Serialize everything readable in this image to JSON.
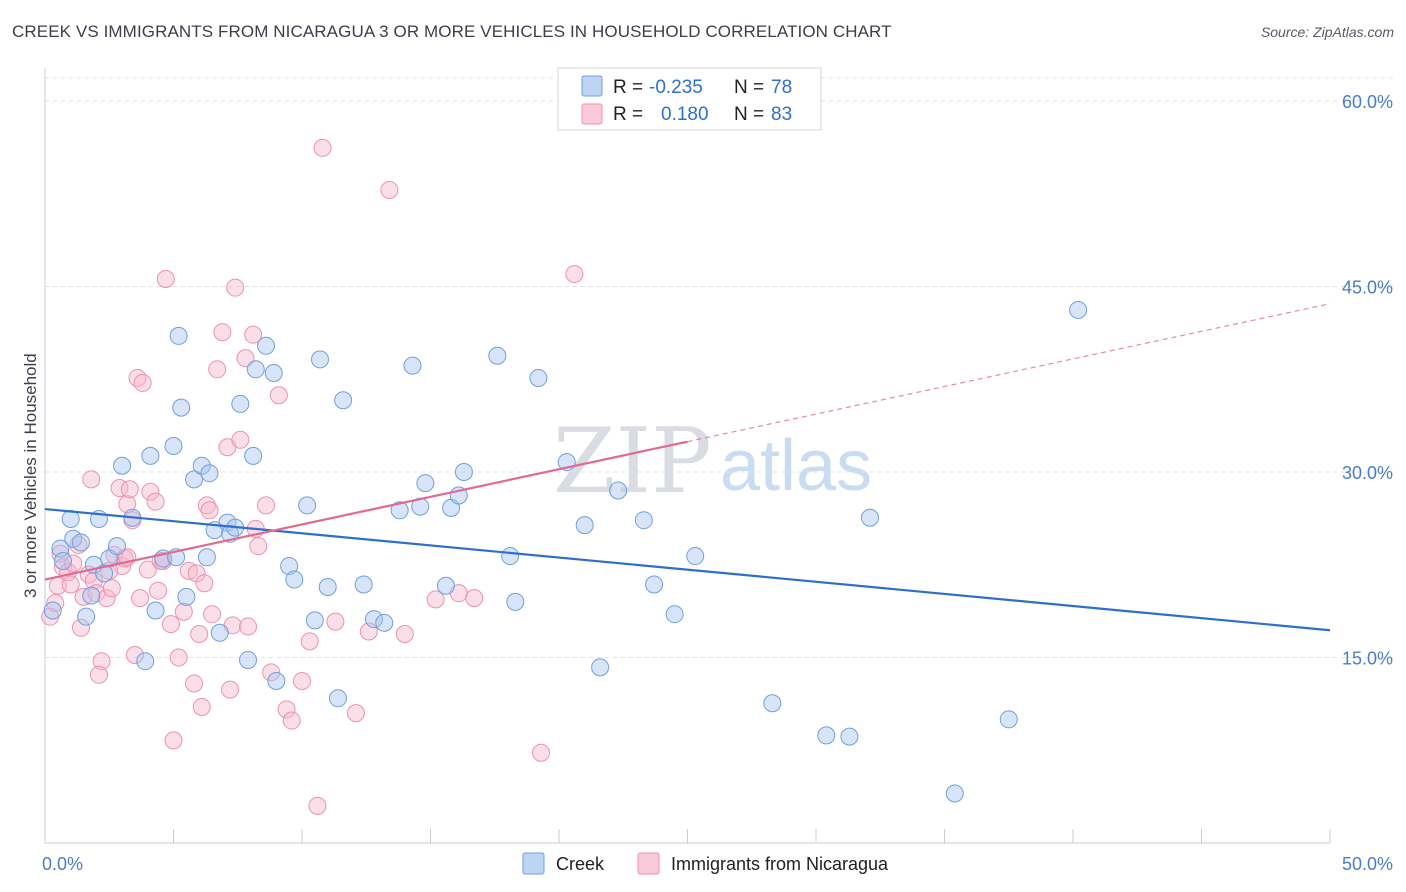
{
  "title": "CREEK VS IMMIGRANTS FROM NICARAGUA 3 OR MORE VEHICLES IN HOUSEHOLD CORRELATION CHART",
  "source": "Source: ZipAtlas.com",
  "watermark": {
    "zip": "ZIP",
    "atlas": "atlas"
  },
  "legend": {
    "r_label": "R =",
    "n_label": "N =",
    "creek": {
      "r": "-0.235",
      "n": "78"
    },
    "nicaragua": {
      "r": "0.180",
      "n": "83"
    }
  },
  "bottom_legend": {
    "creek": "Creek",
    "nicaragua": "Immigrants from Nicaragua"
  },
  "colors": {
    "creek_fill": "#a8c6ef",
    "creek_stroke": "#6f9fe0",
    "creek_line": "#2f6fcc",
    "nic_fill": "#f7b8cb",
    "nic_stroke": "#ef91ae",
    "nic_line": "#e26a92",
    "grid": "#dfe3e8",
    "axis_text": "#4a7cc9"
  },
  "chart_data": {
    "type": "scatter",
    "title": "CREEK VS IMMIGRANTS FROM NICARAGUA 3 OR MORE VEHICLES IN HOUSEHOLD CORRELATION CHART",
    "xlabel": "",
    "ylabel": "3 or more Vehicles in Household",
    "xlim": [
      0,
      50
    ],
    "ylim": [
      0,
      62.5
    ],
    "x_tick_labels": [
      "0.0%",
      "50.0%"
    ],
    "y_ticks": [
      15,
      30,
      45,
      60
    ],
    "y_tick_labels": [
      "15.0%",
      "30.0%",
      "45.0%",
      "60.0%"
    ],
    "legend_position": "top-center",
    "series": [
      {
        "name": "Creek",
        "r": -0.235,
        "n": 78,
        "trend": {
          "x": [
            0,
            50
          ],
          "y": [
            27.0,
            17.2
          ],
          "dashed_to": null
        },
        "points": [
          [
            0.3,
            18.8
          ],
          [
            0.6,
            23.8
          ],
          [
            0.7,
            22.8
          ],
          [
            1.0,
            26.2
          ],
          [
            1.1,
            24.6
          ],
          [
            1.4,
            24.3
          ],
          [
            1.6,
            18.3
          ],
          [
            1.9,
            22.5
          ],
          [
            2.1,
            26.2
          ],
          [
            2.3,
            21.8
          ],
          [
            2.5,
            23.0
          ],
          [
            2.8,
            24.0
          ],
          [
            3.0,
            30.5
          ],
          [
            3.4,
            26.3
          ],
          [
            3.9,
            14.7
          ],
          [
            4.1,
            31.3
          ],
          [
            4.3,
            18.8
          ],
          [
            4.6,
            23.0
          ],
          [
            5.0,
            32.1
          ],
          [
            5.1,
            23.1
          ],
          [
            5.2,
            41.0
          ],
          [
            5.3,
            35.2
          ],
          [
            5.5,
            19.9
          ],
          [
            5.8,
            29.4
          ],
          [
            6.1,
            30.5
          ],
          [
            6.3,
            23.1
          ],
          [
            6.4,
            29.9
          ],
          [
            6.6,
            25.3
          ],
          [
            6.8,
            17.0
          ],
          [
            7.1,
            25.9
          ],
          [
            7.2,
            25.0
          ],
          [
            7.4,
            25.5
          ],
          [
            7.6,
            35.5
          ],
          [
            7.9,
            14.8
          ],
          [
            8.1,
            31.3
          ],
          [
            8.2,
            38.3
          ],
          [
            8.6,
            40.2
          ],
          [
            8.9,
            38.0
          ],
          [
            9.0,
            13.1
          ],
          [
            9.5,
            22.4
          ],
          [
            9.7,
            21.3
          ],
          [
            10.2,
            27.3
          ],
          [
            10.5,
            18.0
          ],
          [
            10.7,
            39.1
          ],
          [
            11.0,
            20.7
          ],
          [
            11.4,
            11.7
          ],
          [
            11.6,
            35.8
          ],
          [
            12.4,
            20.9
          ],
          [
            12.8,
            18.1
          ],
          [
            13.2,
            17.8
          ],
          [
            13.8,
            26.9
          ],
          [
            14.3,
            38.6
          ],
          [
            14.6,
            27.2
          ],
          [
            14.8,
            29.1
          ],
          [
            15.6,
            20.8
          ],
          [
            15.8,
            27.1
          ],
          [
            16.1,
            28.1
          ],
          [
            16.3,
            30.0
          ],
          [
            17.6,
            39.4
          ],
          [
            18.1,
            23.2
          ],
          [
            18.3,
            19.5
          ],
          [
            19.2,
            37.6
          ],
          [
            20.3,
            30.8
          ],
          [
            21.0,
            25.7
          ],
          [
            21.6,
            14.2
          ],
          [
            22.3,
            28.5
          ],
          [
            23.3,
            26.1
          ],
          [
            23.7,
            20.9
          ],
          [
            24.5,
            18.5
          ],
          [
            25.3,
            23.2
          ],
          [
            28.3,
            11.3
          ],
          [
            30.4,
            8.7
          ],
          [
            31.3,
            8.6
          ],
          [
            32.1,
            26.3
          ],
          [
            35.4,
            4.0
          ],
          [
            37.5,
            10.0
          ],
          [
            40.2,
            43.1
          ],
          [
            1.8,
            20.0
          ]
        ]
      },
      {
        "name": "Immigrants from Nicaragua",
        "r": 0.18,
        "n": 83,
        "trend": {
          "x": [
            0,
            50
          ],
          "y": [
            21.3,
            43.6
          ],
          "solid_until_x": 25.0
        },
        "points": [
          [
            0.2,
            18.3
          ],
          [
            0.4,
            19.4
          ],
          [
            0.5,
            20.8
          ],
          [
            0.6,
            23.4
          ],
          [
            0.7,
            22.3
          ],
          [
            0.9,
            21.9
          ],
          [
            1.0,
            20.9
          ],
          [
            1.1,
            22.6
          ],
          [
            1.3,
            24.1
          ],
          [
            1.4,
            17.4
          ],
          [
            1.5,
            19.9
          ],
          [
            1.7,
            21.7
          ],
          [
            1.8,
            29.4
          ],
          [
            1.9,
            21.2
          ],
          [
            2.0,
            20.2
          ],
          [
            2.2,
            14.7
          ],
          [
            2.1,
            13.6
          ],
          [
            2.4,
            19.8
          ],
          [
            2.6,
            20.6
          ],
          [
            2.7,
            23.3
          ],
          [
            2.9,
            28.7
          ],
          [
            3.0,
            22.4
          ],
          [
            3.1,
            23.0
          ],
          [
            3.2,
            27.4
          ],
          [
            3.3,
            28.6
          ],
          [
            3.4,
            26.1
          ],
          [
            3.5,
            15.2
          ],
          [
            3.6,
            37.6
          ],
          [
            3.7,
            19.8
          ],
          [
            3.8,
            37.2
          ],
          [
            4.0,
            22.1
          ],
          [
            4.1,
            28.4
          ],
          [
            4.3,
            27.6
          ],
          [
            4.4,
            20.4
          ],
          [
            4.6,
            22.8
          ],
          [
            4.7,
            45.6
          ],
          [
            4.9,
            17.7
          ],
          [
            5.0,
            8.3
          ],
          [
            5.2,
            15.0
          ],
          [
            5.4,
            18.7
          ],
          [
            5.6,
            22.0
          ],
          [
            5.8,
            12.9
          ],
          [
            5.9,
            21.8
          ],
          [
            6.0,
            16.9
          ],
          [
            6.1,
            11.0
          ],
          [
            6.3,
            27.3
          ],
          [
            6.4,
            26.9
          ],
          [
            6.5,
            18.5
          ],
          [
            6.7,
            38.3
          ],
          [
            6.9,
            41.3
          ],
          [
            7.1,
            32.0
          ],
          [
            7.2,
            12.4
          ],
          [
            7.3,
            17.6
          ],
          [
            7.4,
            44.9
          ],
          [
            7.6,
            32.6
          ],
          [
            7.8,
            39.2
          ],
          [
            7.9,
            17.5
          ],
          [
            8.1,
            41.1
          ],
          [
            8.2,
            25.4
          ],
          [
            8.3,
            24.0
          ],
          [
            8.6,
            27.3
          ],
          [
            8.8,
            13.8
          ],
          [
            9.1,
            36.2
          ],
          [
            9.4,
            10.8
          ],
          [
            9.6,
            9.9
          ],
          [
            10.0,
            13.1
          ],
          [
            10.3,
            16.3
          ],
          [
            10.6,
            3.0
          ],
          [
            10.8,
            56.2
          ],
          [
            11.3,
            17.9
          ],
          [
            12.1,
            10.5
          ],
          [
            12.6,
            17.1
          ],
          [
            13.4,
            52.8
          ],
          [
            14.0,
            16.9
          ],
          [
            15.2,
            19.7
          ],
          [
            16.1,
            20.2
          ],
          [
            16.7,
            19.8
          ],
          [
            19.3,
            7.3
          ],
          [
            20.6,
            46.0
          ],
          [
            4.5,
            22.8
          ],
          [
            3.2,
            23.1
          ],
          [
            2.5,
            22.0
          ],
          [
            6.2,
            21.0
          ]
        ]
      }
    ]
  }
}
